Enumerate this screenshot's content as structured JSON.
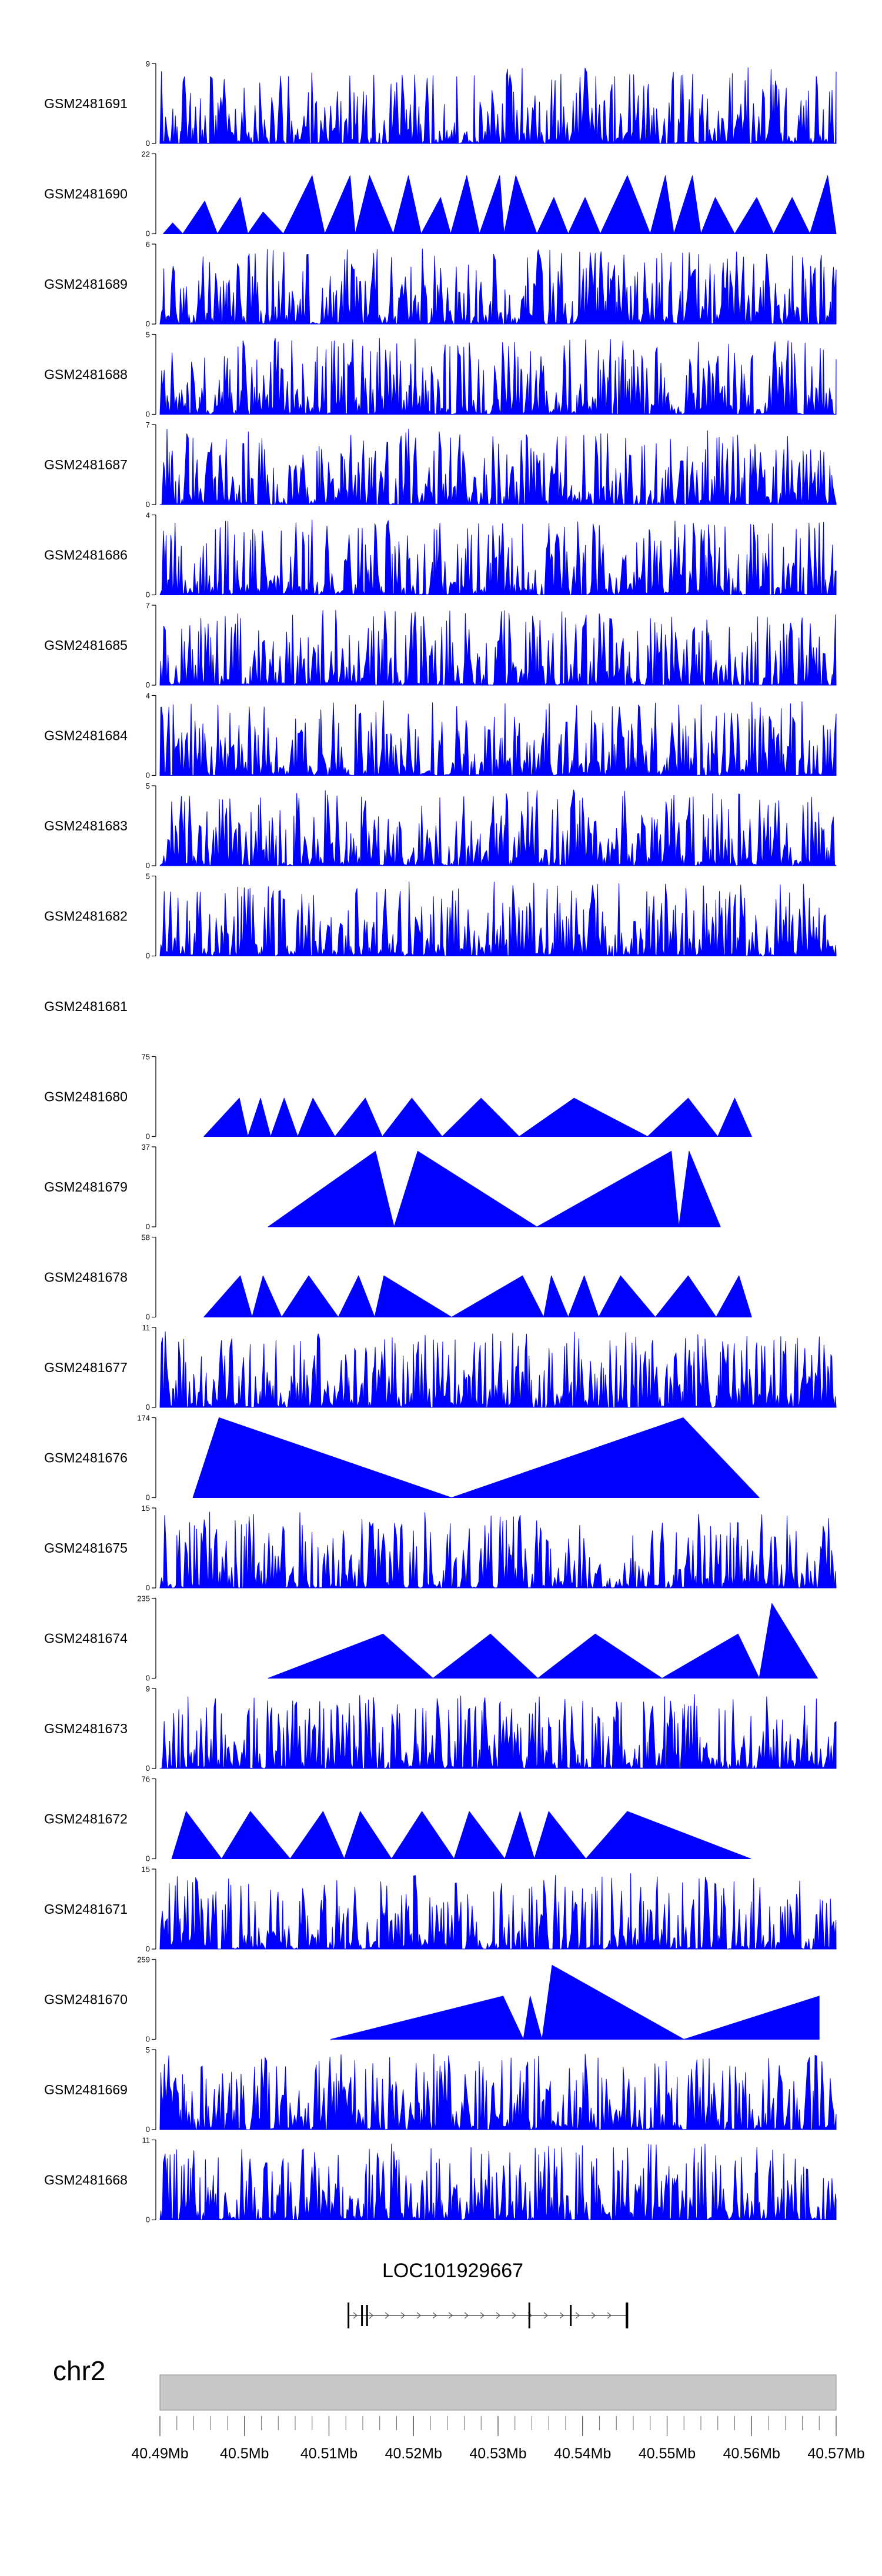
{
  "chart_data": {
    "type": "area",
    "title": "",
    "chromosome": "chr2",
    "xlim": [
      40.49,
      40.57
    ],
    "x_unit": "Mb",
    "tracks": [
      {
        "name": "GSM2481691",
        "ymax": 9,
        "baseline": 0,
        "pattern": "dense"
      },
      {
        "name": "GSM2481690",
        "ymax": 22,
        "baseline": 0,
        "pattern": "triangles",
        "peaks": [
          [
            40.4904,
            40.4915,
            40.4927,
            3
          ],
          [
            40.4927,
            40.4953,
            40.4968,
            9
          ],
          [
            40.4968,
            40.4995,
            40.5004,
            10
          ],
          [
            40.5004,
            40.5022,
            40.5046,
            6
          ],
          [
            40.5046,
            40.508,
            40.5095,
            16
          ],
          [
            40.5095,
            40.5125,
            40.5131,
            16
          ],
          [
            40.5131,
            40.5148,
            40.5176,
            16
          ],
          [
            40.5176,
            40.5194,
            40.5209,
            16
          ],
          [
            40.5209,
            40.5232,
            40.5244,
            10
          ],
          [
            40.5244,
            40.5263,
            40.5278,
            16
          ],
          [
            40.5278,
            40.5302,
            40.5307,
            16
          ],
          [
            40.5307,
            40.5321,
            40.5346,
            16
          ],
          [
            40.5346,
            40.5366,
            40.5383,
            10
          ],
          [
            40.5383,
            40.5403,
            40.5421,
            10
          ],
          [
            40.5421,
            40.5453,
            40.548,
            16
          ],
          [
            40.548,
            40.5498,
            40.5508,
            16
          ],
          [
            40.5508,
            40.553,
            40.554,
            16
          ],
          [
            40.554,
            40.5557,
            40.558,
            10
          ],
          [
            40.558,
            40.5606,
            40.5626,
            10
          ],
          [
            40.5626,
            40.5648,
            40.5669,
            10
          ],
          [
            40.5669,
            40.569,
            40.57,
            16
          ]
        ]
      },
      {
        "name": "GSM2481689",
        "ymax": 6,
        "baseline": 0,
        "pattern": "dense"
      },
      {
        "name": "GSM2481688",
        "ymax": 5,
        "baseline": 0,
        "pattern": "dense"
      },
      {
        "name": "GSM2481687",
        "ymax": 7,
        "baseline": 0,
        "pattern": "dense"
      },
      {
        "name": "GSM2481686",
        "ymax": 4,
        "baseline": 0,
        "pattern": "dense"
      },
      {
        "name": "GSM2481685",
        "ymax": 7,
        "baseline": 0,
        "pattern": "dense"
      },
      {
        "name": "GSM2481684",
        "ymax": 4,
        "baseline": 0,
        "pattern": "dense"
      },
      {
        "name": "GSM2481683",
        "ymax": 5,
        "baseline": 0,
        "pattern": "dense"
      },
      {
        "name": "GSM2481682",
        "ymax": 5,
        "baseline": 0,
        "pattern": "dense"
      },
      {
        "name": "GSM2481681",
        "ymax": null,
        "baseline": null,
        "pattern": "empty"
      },
      {
        "name": "GSM2481680",
        "ymax": 75,
        "baseline": 0,
        "pattern": "triangles",
        "peaks": [
          [
            40.4952,
            40.4994,
            40.5004,
            36
          ],
          [
            40.5004,
            40.5019,
            40.5031,
            36
          ],
          [
            40.5031,
            40.5047,
            40.5063,
            36
          ],
          [
            40.5063,
            40.5081,
            40.5107,
            36
          ],
          [
            40.5107,
            40.5143,
            40.5163,
            36
          ],
          [
            40.5163,
            40.5198,
            40.5234,
            36
          ],
          [
            40.5234,
            40.528,
            40.5325,
            36
          ],
          [
            40.5325,
            40.539,
            40.5477,
            36
          ],
          [
            40.5477,
            40.5525,
            40.556,
            36
          ],
          [
            40.556,
            40.558,
            40.56,
            36
          ]
        ]
      },
      {
        "name": "GSM2481679",
        "ymax": 37,
        "baseline": 0,
        "pattern": "triangles",
        "peaks": [
          [
            40.5028,
            40.5155,
            40.5177,
            35
          ],
          [
            40.5177,
            40.5205,
            40.5346,
            35
          ],
          [
            40.5346,
            40.5505,
            40.5514,
            35
          ],
          [
            40.5514,
            40.5526,
            40.5563,
            35
          ]
        ]
      },
      {
        "name": "GSM2481678",
        "ymax": 58,
        "baseline": 0,
        "pattern": "triangles",
        "peaks": [
          [
            40.4952,
            40.4995,
            40.5009,
            30
          ],
          [
            40.5009,
            40.5022,
            40.5044,
            30
          ],
          [
            40.5044,
            40.5076,
            40.5111,
            30
          ],
          [
            40.5111,
            40.5135,
            40.5154,
            30
          ],
          [
            40.5154,
            40.5165,
            40.5245,
            30
          ],
          [
            40.5245,
            40.5329,
            40.5354,
            30
          ],
          [
            40.5354,
            40.5363,
            40.5383,
            30
          ],
          [
            40.5383,
            40.5402,
            40.5419,
            30
          ],
          [
            40.5419,
            40.5445,
            40.5486,
            30
          ],
          [
            40.5486,
            40.5525,
            40.5558,
            30
          ],
          [
            40.5558,
            40.5585,
            40.56,
            30
          ]
        ]
      },
      {
        "name": "GSM2481677",
        "ymax": 11,
        "baseline": 0,
        "pattern": "dense"
      },
      {
        "name": "GSM2481676",
        "ymax": 174,
        "baseline": 0,
        "pattern": "triangles",
        "peaks": [
          [
            40.4939,
            40.497,
            40.5245,
            174
          ],
          [
            40.5245,
            40.5519,
            40.5609,
            174
          ]
        ]
      },
      {
        "name": "GSM2481675",
        "ymax": 15,
        "baseline": 0,
        "pattern": "dense"
      },
      {
        "name": "GSM2481674",
        "ymax": 235,
        "baseline": 0,
        "pattern": "triangles",
        "peaks": [
          [
            40.5028,
            40.5164,
            40.5223,
            130
          ],
          [
            40.5223,
            40.5291,
            40.5347,
            130
          ],
          [
            40.5347,
            40.5415,
            40.5494,
            130
          ],
          [
            40.5494,
            40.5584,
            40.5609,
            130
          ],
          [
            40.5609,
            40.5624,
            40.5678,
            220
          ]
        ]
      },
      {
        "name": "GSM2481673",
        "ymax": 9,
        "baseline": 0,
        "pattern": "dense"
      },
      {
        "name": "GSM2481672",
        "ymax": 76,
        "baseline": 0,
        "pattern": "triangles",
        "peaks": [
          [
            40.4914,
            40.4931,
            40.4973,
            45
          ],
          [
            40.4973,
            40.5007,
            40.5054,
            45
          ],
          [
            40.5054,
            40.5093,
            40.5118,
            45
          ],
          [
            40.5118,
            40.5137,
            40.5174,
            45
          ],
          [
            40.5174,
            40.521,
            40.5248,
            45
          ],
          [
            40.5248,
            40.5266,
            40.5308,
            45
          ],
          [
            40.5308,
            40.5326,
            40.5343,
            45
          ],
          [
            40.5343,
            40.536,
            40.5404,
            45
          ],
          [
            40.5404,
            40.5453,
            40.5599,
            45
          ]
        ]
      },
      {
        "name": "GSM2481671",
        "ymax": 15,
        "baseline": 0,
        "pattern": "dense"
      },
      {
        "name": "GSM2481670",
        "ymax": 259,
        "baseline": 0,
        "pattern": "triangles",
        "peaks": [
          [
            40.5102,
            40.5306,
            40.533,
            140
          ],
          [
            40.533,
            40.5338,
            40.5352,
            140
          ],
          [
            40.5352,
            40.5364,
            40.552,
            240
          ],
          [
            40.552,
            40.568,
            40.568,
            140
          ]
        ]
      },
      {
        "name": "GSM2481669",
        "ymax": 5,
        "baseline": 0,
        "pattern": "dense"
      },
      {
        "name": "GSM2481668",
        "ymax": 11,
        "baseline": 0,
        "pattern": "dense"
      }
    ],
    "gene": {
      "name": "LOC101929667",
      "start": 40.5122,
      "end": 40.5454,
      "strand": "+",
      "exons": [
        [
          40.5122,
          40.5123
        ],
        [
          40.5138,
          40.5139
        ],
        [
          40.5144,
          40.5145
        ],
        [
          40.5336,
          40.5338
        ],
        [
          40.5385,
          40.5386
        ],
        [
          40.5451,
          40.5454
        ]
      ]
    },
    "axis": {
      "ticks": [
        40.49,
        40.5,
        40.51,
        40.52,
        40.53,
        40.54,
        40.55,
        40.56,
        40.57
      ],
      "tick_labels": [
        "40.49Mb",
        "40.5Mb",
        "40.51Mb",
        "40.52Mb",
        "40.53Mb",
        "40.54Mb",
        "40.55Mb",
        "40.56Mb",
        "40.57Mb"
      ],
      "minor_tick_step": 0.002
    }
  }
}
